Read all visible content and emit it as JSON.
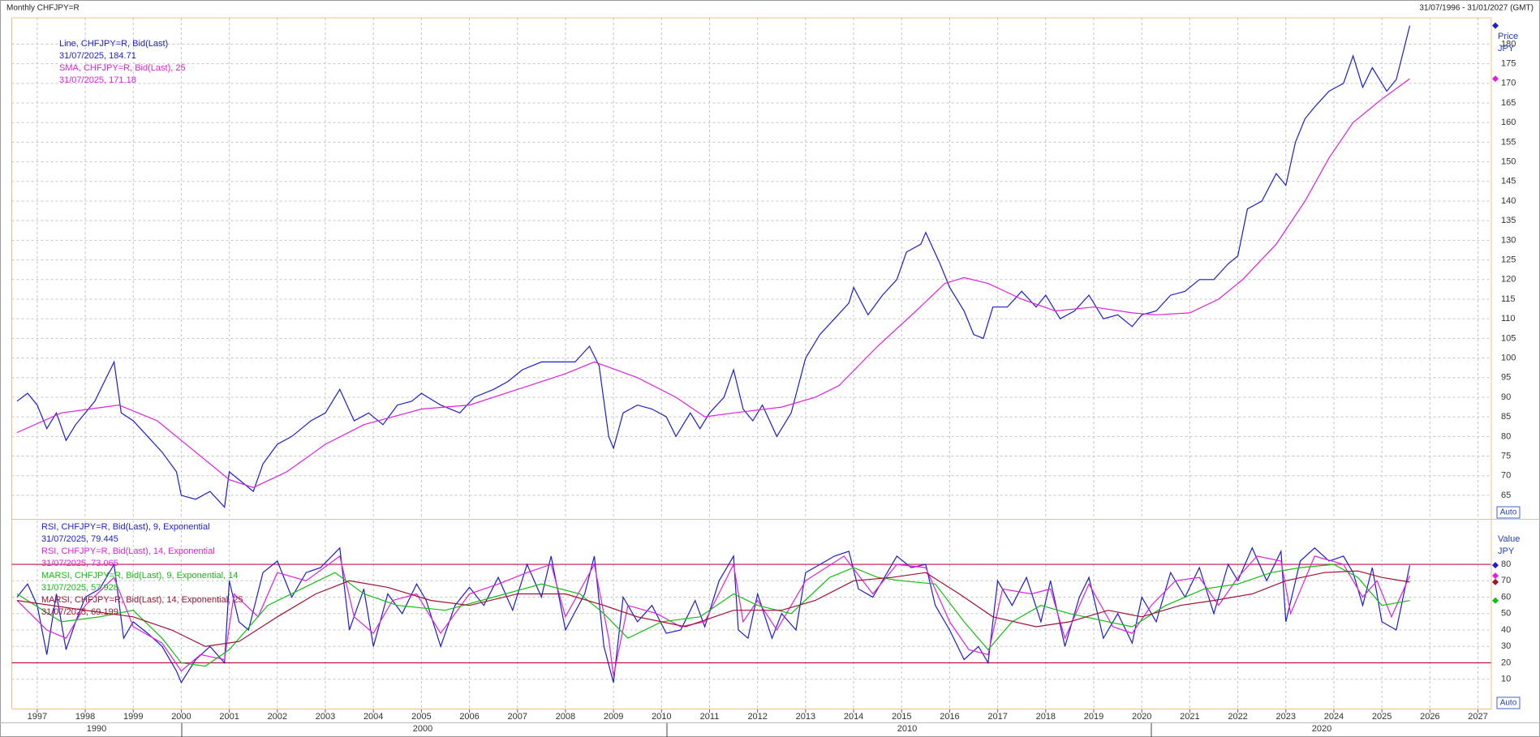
{
  "header": {
    "title": "Monthly CHFJPY=R",
    "range": "31/07/1996 - 31/01/2027 (GMT)"
  },
  "chart_data": [
    {
      "type": "line",
      "axis_label": "Price",
      "axis_unit": "JPY",
      "scale_mode": "Auto",
      "grid": true,
      "xlim": [
        1996.47,
        2027.27
      ],
      "ylim": [
        59.2,
        186.7
      ],
      "yticks": [
        65,
        70,
        75,
        80,
        85,
        90,
        95,
        100,
        105,
        110,
        115,
        120,
        125,
        130,
        135,
        140,
        145,
        150,
        155,
        160,
        165,
        170,
        175,
        180
      ],
      "series": [
        {
          "name": "Line, CHFJPY=R, Bid(Last)",
          "value_label": "31/07/2025, 184.71",
          "color": "#1c1cd8",
          "x": [
            1996.58,
            1996.8,
            1997.0,
            1997.2,
            1997.4,
            1997.6,
            1997.8,
            1998.0,
            1998.2,
            1998.4,
            1998.6,
            1998.75,
            1999.0,
            1999.3,
            1999.6,
            1999.9,
            2000.0,
            2000.3,
            2000.6,
            2000.9,
            2001.0,
            2001.3,
            2001.5,
            2001.7,
            2002.0,
            2002.3,
            2002.7,
            2003.0,
            2003.3,
            2003.6,
            2003.9,
            2004.2,
            2004.5,
            2004.8,
            2005.0,
            2005.4,
            2005.8,
            2006.1,
            2006.5,
            2006.8,
            2007.1,
            2007.5,
            2007.9,
            2008.2,
            2008.5,
            2008.7,
            2008.9,
            2009.0,
            2009.2,
            2009.5,
            2009.8,
            2010.1,
            2010.3,
            2010.6,
            2010.8,
            2011.0,
            2011.3,
            2011.5,
            2011.7,
            2011.9,
            2012.1,
            2012.4,
            2012.7,
            2013.0,
            2013.3,
            2013.6,
            2013.9,
            2014.0,
            2014.3,
            2014.6,
            2014.9,
            2015.1,
            2015.4,
            2015.5,
            2015.8,
            2016.0,
            2016.3,
            2016.5,
            2016.7,
            2016.9,
            2017.2,
            2017.5,
            2017.8,
            2018.0,
            2018.3,
            2018.6,
            2018.9,
            2019.2,
            2019.5,
            2019.8,
            2020.0,
            2020.3,
            2020.6,
            2020.9,
            2021.2,
            2021.5,
            2021.8,
            2022.0,
            2022.2,
            2022.5,
            2022.8,
            2023.0,
            2023.2,
            2023.4,
            2023.6,
            2023.9,
            2024.2,
            2024.4,
            2024.6,
            2024.8,
            2025.1,
            2025.3,
            2025.58
          ],
          "values": [
            89,
            91,
            88,
            82,
            86,
            79,
            83,
            86,
            89,
            94,
            99,
            86,
            84,
            80,
            76,
            71,
            65,
            64,
            66,
            62,
            71,
            68,
            66,
            73,
            78,
            80,
            84,
            86,
            92,
            84,
            86,
            83,
            88,
            89,
            91,
            88,
            86,
            90,
            92,
            94,
            97,
            99,
            99,
            99,
            103,
            98,
            80,
            77,
            86,
            88,
            87,
            85,
            80,
            86,
            82,
            86,
            90,
            97,
            87,
            84,
            88,
            80,
            86,
            100,
            106,
            110,
            114,
            118,
            111,
            116,
            120,
            127,
            129,
            132,
            124,
            118,
            112,
            106,
            105,
            113,
            113,
            117,
            113,
            116,
            110,
            112,
            116,
            110,
            111,
            108,
            111,
            112,
            116,
            117,
            120,
            120,
            124,
            126,
            138,
            140,
            147,
            144,
            155,
            161,
            164,
            168,
            170,
            177,
            169,
            174,
            168,
            171,
            184.71
          ]
        },
        {
          "name": "SMA, CHFJPY=R, Bid(Last),  25",
          "value_label": "31/07/2025, 171.18",
          "color": "#e020e0",
          "x": [
            1996.58,
            1997.5,
            1998.7,
            1999.5,
            2000.3,
            2001.0,
            2001.5,
            2002.2,
            2003.0,
            2003.8,
            2005.0,
            2006.0,
            2007.0,
            2008.0,
            2008.6,
            2009.5,
            2010.3,
            2010.9,
            2011.5,
            2012.5,
            2013.2,
            2013.7,
            2014.5,
            2015.3,
            2015.9,
            2016.3,
            2016.8,
            2017.5,
            2018.2,
            2019.0,
            2019.8,
            2020.3,
            2021.0,
            2021.6,
            2022.1,
            2022.8,
            2023.4,
            2023.9,
            2024.4,
            2025.0,
            2025.58
          ],
          "values": [
            81,
            86,
            88,
            84,
            76,
            69,
            67,
            71,
            78,
            83,
            87,
            88,
            92,
            96,
            99,
            95,
            90,
            85,
            86,
            87.5,
            90,
            93,
            103,
            112,
            119,
            120.5,
            119,
            115,
            112,
            113,
            111.5,
            111,
            111.5,
            115,
            120,
            129,
            140,
            151,
            160,
            166,
            171.18
          ]
        }
      ]
    },
    {
      "type": "line",
      "axis_label": "Value",
      "axis_unit": "JPY",
      "scale_mode": "Auto",
      "grid": true,
      "xlim": [
        1996.47,
        2027.27
      ],
      "ylim": [
        -7.9,
        106.7
      ],
      "yticks": [
        10,
        20,
        30,
        40,
        50,
        60,
        70,
        80
      ],
      "xticks": [
        1997,
        1998,
        1999,
        2000,
        2001,
        2002,
        2003,
        2004,
        2005,
        2006,
        2007,
        2008,
        2009,
        2010,
        2011,
        2012,
        2013,
        2014,
        2015,
        2016,
        2017,
        2018,
        2019,
        2020,
        2021,
        2022,
        2023,
        2024,
        2025,
        2026,
        2027
      ],
      "x_group_labels": [
        "1990",
        "2000",
        "2010",
        "2020"
      ],
      "hlines": [
        80,
        20
      ],
      "hline_color": "#c0104a",
      "series": [
        {
          "name": "RSI, CHFJPY=R, Bid(Last),  9, Exponential",
          "value_label": "31/07/2025, 79.445",
          "color": "#1c1cd8",
          "x": [
            1996.58,
            1996.8,
            1997.0,
            1997.2,
            1997.4,
            1997.6,
            1997.8,
            1998.0,
            1998.3,
            1998.6,
            1998.8,
            1999.0,
            1999.3,
            1999.6,
            1999.9,
            2000.0,
            2000.3,
            2000.6,
            2000.9,
            2001.0,
            2001.2,
            2001.4,
            2001.7,
            2002.0,
            2002.3,
            2002.6,
            2002.9,
            2003.3,
            2003.5,
            2003.8,
            2004.0,
            2004.3,
            2004.6,
            2004.9,
            2005.1,
            2005.4,
            2005.7,
            2006.0,
            2006.3,
            2006.6,
            2006.9,
            2007.2,
            2007.5,
            2007.7,
            2008.0,
            2008.4,
            2008.6,
            2008.8,
            2009.0,
            2009.2,
            2009.5,
            2009.8,
            2010.1,
            2010.4,
            2010.7,
            2010.9,
            2011.2,
            2011.5,
            2011.6,
            2011.8,
            2012.0,
            2012.3,
            2012.5,
            2012.8,
            2013.0,
            2013.3,
            2013.6,
            2013.9,
            2014.1,
            2014.4,
            2014.7,
            2014.9,
            2015.2,
            2015.5,
            2015.7,
            2016.0,
            2016.3,
            2016.6,
            2016.8,
            2017.0,
            2017.3,
            2017.6,
            2017.9,
            2018.1,
            2018.4,
            2018.7,
            2018.9,
            2019.2,
            2019.5,
            2019.8,
            2020.0,
            2020.3,
            2020.6,
            2020.9,
            2021.2,
            2021.5,
            2021.8,
            2022.0,
            2022.3,
            2022.6,
            2022.9,
            2023.0,
            2023.3,
            2023.6,
            2023.9,
            2024.2,
            2024.4,
            2024.6,
            2024.8,
            2025.0,
            2025.3,
            2025.58
          ],
          "values": [
            60,
            68,
            55,
            25,
            62,
            28,
            45,
            60,
            65,
            80,
            35,
            45,
            38,
            30,
            15,
            8,
            22,
            30,
            20,
            70,
            45,
            40,
            75,
            82,
            60,
            75,
            78,
            90,
            40,
            65,
            30,
            62,
            50,
            68,
            58,
            30,
            55,
            66,
            55,
            72,
            52,
            80,
            60,
            85,
            40,
            62,
            85,
            30,
            8,
            60,
            45,
            55,
            38,
            40,
            58,
            42,
            70,
            85,
            40,
            35,
            62,
            35,
            50,
            40,
            75,
            80,
            85,
            88,
            65,
            60,
            75,
            85,
            78,
            80,
            55,
            40,
            22,
            30,
            20,
            70,
            55,
            72,
            45,
            70,
            30,
            60,
            72,
            35,
            50,
            32,
            60,
            45,
            75,
            60,
            78,
            50,
            80,
            70,
            90,
            70,
            88,
            45,
            82,
            90,
            82,
            85,
            75,
            55,
            78,
            45,
            40,
            79.445
          ]
        },
        {
          "name": "RSI, CHFJPY=R, Bid(Last),  14, Exponential",
          "value_label": "31/07/2025, 73.065",
          "color": "#e020e0",
          "x": [
            1996.58,
            1997.2,
            1997.6,
            1998.0,
            1998.6,
            1999.0,
            1999.6,
            2000.0,
            2000.4,
            2000.9,
            2001.1,
            2001.6,
            2002.0,
            2002.6,
            2003.3,
            2003.6,
            2004.0,
            2004.4,
            2004.9,
            2005.4,
            2006.0,
            2006.6,
            2007.2,
            2007.7,
            2008.0,
            2008.6,
            2008.9,
            2009.0,
            2009.3,
            2009.9,
            2010.4,
            2010.9,
            2011.5,
            2011.7,
            2012.0,
            2012.4,
            2013.0,
            2013.8,
            2014.4,
            2014.9,
            2015.5,
            2016.0,
            2016.4,
            2016.8,
            2017.1,
            2017.7,
            2018.1,
            2018.4,
            2018.9,
            2019.4,
            2019.8,
            2020.2,
            2020.7,
            2021.2,
            2021.6,
            2022.0,
            2022.4,
            2022.9,
            2023.1,
            2023.6,
            2024.2,
            2024.6,
            2024.9,
            2025.2,
            2025.58
          ],
          "values": [
            58,
            40,
            35,
            55,
            72,
            42,
            32,
            15,
            25,
            22,
            62,
            48,
            75,
            70,
            85,
            48,
            38,
            58,
            62,
            38,
            62,
            68,
            75,
            80,
            48,
            80,
            35,
            12,
            55,
            50,
            42,
            45,
            80,
            45,
            58,
            40,
            70,
            85,
            62,
            80,
            78,
            45,
            28,
            25,
            65,
            62,
            65,
            35,
            68,
            42,
            38,
            55,
            70,
            72,
            55,
            72,
            85,
            82,
            50,
            85,
            80,
            60,
            70,
            48,
            73.065
          ]
        },
        {
          "name": "MARSI, CHFJPY=R, Bid(Last),  9, Exponential, 14",
          "value_label": "31/07/2025, 57.928",
          "color": "#10c010",
          "x": [
            1996.58,
            1997.5,
            1998.3,
            1999.0,
            1999.6,
            2000.0,
            2000.5,
            2001.0,
            2001.8,
            2002.5,
            2003.2,
            2003.8,
            2004.5,
            2005.5,
            2006.5,
            2007.5,
            2008.3,
            2008.8,
            2009.3,
            2010.0,
            2010.8,
            2011.5,
            2012.0,
            2012.7,
            2013.5,
            2014.0,
            2014.5,
            2015.0,
            2015.7,
            2016.3,
            2016.8,
            2017.3,
            2017.9,
            2018.5,
            2019.3,
            2019.8,
            2020.5,
            2021.3,
            2022.0,
            2022.7,
            2023.3,
            2024.0,
            2024.5,
            2025.0,
            2025.58
          ],
          "values": [
            62,
            45,
            48,
            52,
            35,
            20,
            18,
            28,
            55,
            65,
            75,
            62,
            55,
            52,
            60,
            68,
            62,
            50,
            35,
            45,
            48,
            62,
            55,
            50,
            72,
            78,
            72,
            70,
            68,
            45,
            28,
            45,
            55,
            50,
            45,
            42,
            55,
            65,
            68,
            75,
            78,
            80,
            72,
            55,
            57.928
          ]
        },
        {
          "name": "MARSI, CHFJPY=R, Bid(Last),  14, Exponential, 25",
          "value_label": "31/07/2025, 69.199",
          "color": "#a01030",
          "x": [
            1996.58,
            1998.0,
            1999.0,
            1999.8,
            2000.5,
            2001.2,
            2002.0,
            2002.8,
            2003.5,
            2004.3,
            2005.2,
            2006.0,
            2007.0,
            2008.0,
            2008.8,
            2009.5,
            2010.5,
            2011.5,
            2012.5,
            2013.2,
            2014.0,
            2014.8,
            2015.5,
            2016.2,
            2016.9,
            2017.8,
            2018.5,
            2019.3,
            2020.0,
            2020.8,
            2021.5,
            2022.3,
            2023.0,
            2023.8,
            2024.5,
            2025.0,
            2025.58
          ],
          "values": [
            58,
            52,
            48,
            40,
            30,
            33,
            48,
            62,
            70,
            66,
            58,
            55,
            62,
            62,
            55,
            48,
            42,
            52,
            52,
            58,
            70,
            72,
            75,
            62,
            48,
            42,
            45,
            52,
            48,
            55,
            58,
            62,
            70,
            75,
            76,
            72,
            69.199
          ]
        }
      ]
    }
  ]
}
